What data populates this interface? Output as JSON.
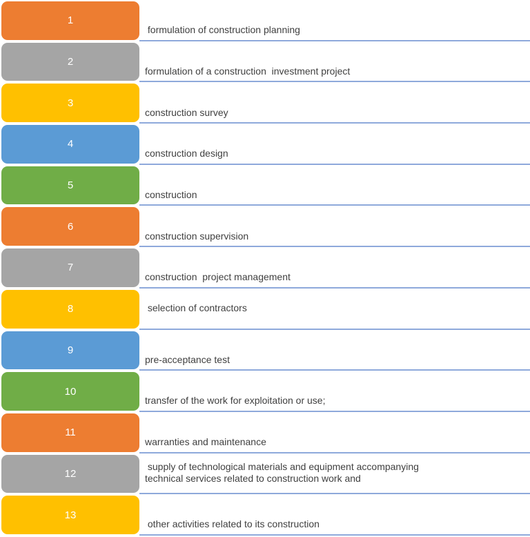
{
  "palette": {
    "orange": "#ED7D31",
    "gray": "#A5A5A5",
    "gold": "#FFC000",
    "blue": "#5B9BD5",
    "green": "#70AD47",
    "line": "#8EA9DB",
    "text": "#3F3F3F",
    "number_text": "#FFFFFF"
  },
  "items": [
    {
      "number": "1",
      "color": "orange",
      "label": " formulation of construction planning"
    },
    {
      "number": "2",
      "color": "gray",
      "label": "formulation of a construction  investment project"
    },
    {
      "number": "3",
      "color": "gold",
      "label": "construction survey"
    },
    {
      "number": "4",
      "color": "blue",
      "label": "construction design"
    },
    {
      "number": "5",
      "color": "green",
      "label": "construction"
    },
    {
      "number": "6",
      "color": "orange",
      "label": "construction supervision"
    },
    {
      "number": "7",
      "color": "gray",
      "label": "construction  project management"
    },
    {
      "number": "8",
      "color": "gold",
      "label": " selection of contractors"
    },
    {
      "number": "9",
      "color": "blue",
      "label": "pre-acceptance test"
    },
    {
      "number": "10",
      "color": "green",
      "label": "transfer of the work for exploitation or use;"
    },
    {
      "number": "11",
      "color": "orange",
      "label": "warranties and maintenance"
    },
    {
      "number": "12",
      "color": "gray",
      "label": " supply of technological materials and equipment accompanying\ntechnical services related to construction work and"
    },
    {
      "number": "13",
      "color": "gold",
      "label": " other activities related to its construction"
    }
  ]
}
